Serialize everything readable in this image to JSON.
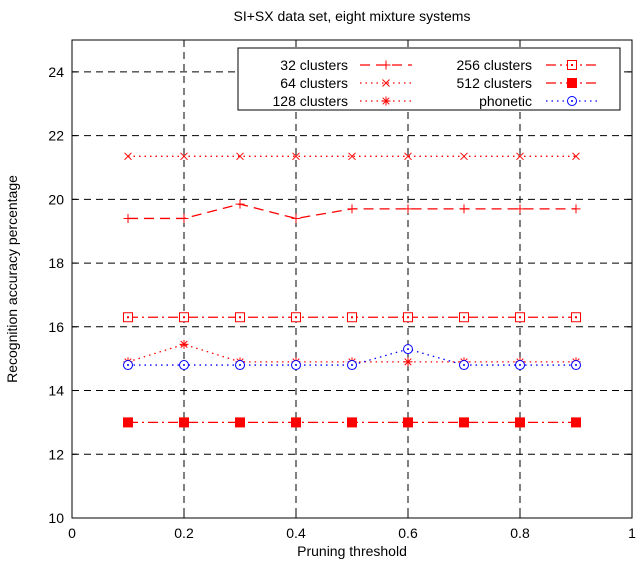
{
  "chart_data": {
    "type": "line",
    "title": "SI+SX data set, eight mixture systems",
    "xlabel": "Pruning threshold",
    "ylabel": "Recognition accuracy percentage",
    "xlim": [
      0,
      1
    ],
    "ylim": [
      10,
      25
    ],
    "xticks": [
      0,
      0.2,
      0.4,
      0.6,
      0.8,
      1
    ],
    "xtick_labels": [
      "0",
      "0.2",
      "0.4",
      "0.6",
      "0.8",
      "1"
    ],
    "yticks": [
      10,
      12,
      14,
      16,
      18,
      20,
      22,
      24
    ],
    "ytick_labels": [
      "10",
      "12",
      "14",
      "16",
      "18",
      "20",
      "22",
      "24"
    ],
    "grid": true,
    "legend_position": "top-right",
    "x": [
      0.1,
      0.2,
      0.3,
      0.4,
      0.5,
      0.6,
      0.7,
      0.8,
      0.9
    ],
    "series": [
      {
        "name": "32 clusters",
        "values": [
          19.4,
          19.4,
          19.85,
          19.4,
          19.7,
          19.7,
          19.7,
          19.7,
          19.7
        ],
        "color": "#ff0000",
        "dash": "dashed",
        "marker": "plus"
      },
      {
        "name": "64 clusters",
        "values": [
          21.35,
          21.35,
          21.35,
          21.35,
          21.35,
          21.35,
          21.35,
          21.35,
          21.35
        ],
        "color": "#ff0000",
        "dash": "dotted",
        "marker": "x"
      },
      {
        "name": "128 clusters",
        "values": [
          14.9,
          15.45,
          14.9,
          14.9,
          14.9,
          14.9,
          14.9,
          14.9,
          14.9
        ],
        "color": "#ff0000",
        "dash": "dotted",
        "marker": "star"
      },
      {
        "name": "256 clusters",
        "values": [
          16.3,
          16.3,
          16.3,
          16.3,
          16.3,
          16.3,
          16.3,
          16.3,
          16.3
        ],
        "color": "#ff0000",
        "dash": "dashdot",
        "marker": "square-open"
      },
      {
        "name": "512 clusters",
        "values": [
          13.0,
          13.0,
          13.0,
          13.0,
          13.0,
          13.0,
          13.0,
          13.0,
          13.0
        ],
        "color": "#ff0000",
        "dash": "dashdot",
        "marker": "square-filled"
      },
      {
        "name": "phonetic",
        "values": [
          14.8,
          14.8,
          14.8,
          14.8,
          14.8,
          15.3,
          14.8,
          14.8,
          14.8
        ],
        "color": "#0000ff",
        "dash": "dotted",
        "marker": "circle-dot"
      }
    ]
  }
}
